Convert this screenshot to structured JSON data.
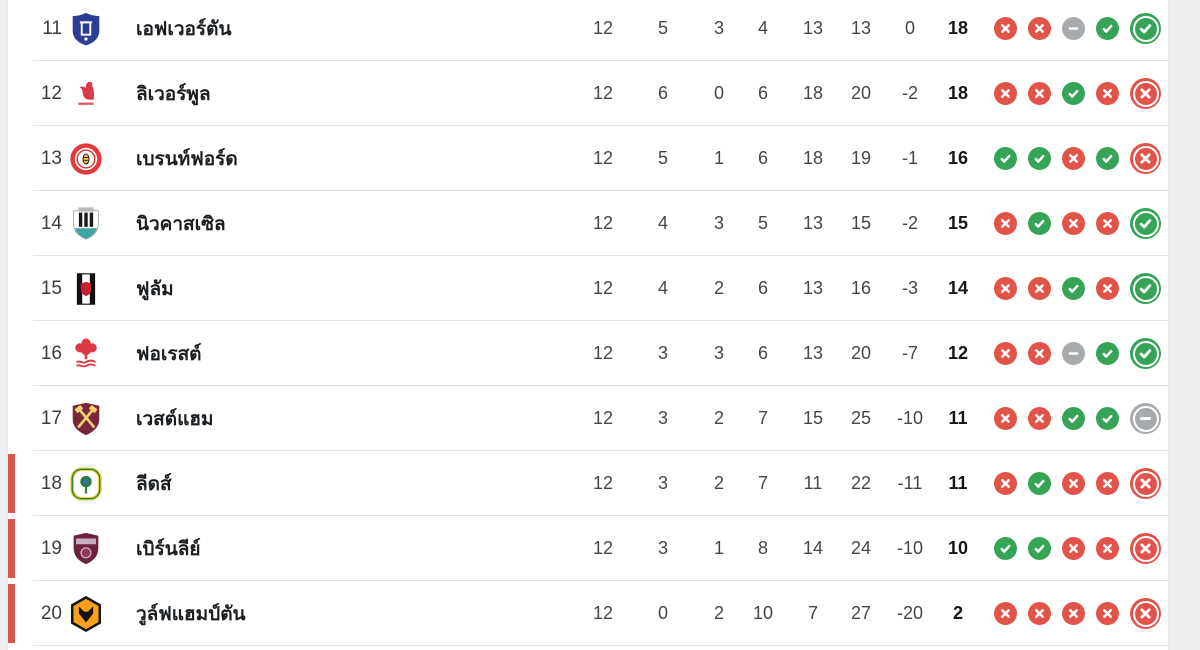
{
  "table": {
    "columns": [
      "pos",
      "team",
      "played",
      "won",
      "drawn",
      "lost",
      "goals_for",
      "goals_against",
      "goal_diff",
      "points",
      "form"
    ]
  },
  "colors": {
    "win": "#36a457",
    "loss": "#e2544a",
    "draw": "#a8abae",
    "relegation_bar": "#d9564c",
    "page_bg": "#eceef0",
    "card_bg": "#ffffff",
    "divider": "#e3e4e6"
  },
  "badges": {
    "everton": {
      "primary": "#2b3f92",
      "secondary": "#ffffff"
    },
    "liverpool": {
      "primary": "#d83a47",
      "secondary": "#ffffff"
    },
    "brentford": {
      "primary": "#e03a3e",
      "secondary": "#ffffff",
      "tertiary": "#f2c230"
    },
    "newcastle": {
      "primary": "#1b1b1b",
      "secondary": "#ffffff",
      "tertiary": "#3fa3a0"
    },
    "fulham": {
      "primary": "#111111",
      "secondary": "#ffffff",
      "tertiary": "#c9202f"
    },
    "forest": {
      "primary": "#dd3844",
      "secondary": "#ffffff"
    },
    "westham": {
      "primary": "#77263c",
      "secondary": "#f3d36b"
    },
    "leeds": {
      "primary": "#e8d53c",
      "secondary": "#2a7a45",
      "tertiary": "#3b6fb5"
    },
    "burnley": {
      "primary": "#6d2240",
      "secondary": "#c8aebf",
      "tertiary": "#8c3a5c"
    },
    "wolves": {
      "primary": "#f9a11b",
      "secondary": "#141414"
    }
  },
  "rows": [
    {
      "pos": "11",
      "key": "everton",
      "team": "เอฟเวอร์ตัน",
      "played": "12",
      "won": "5",
      "drawn": "3",
      "lost": "4",
      "gf": "13",
      "ga": "13",
      "gd": "0",
      "pts": "18",
      "relegation": false,
      "form": [
        "L",
        "L",
        "D",
        "W",
        "W"
      ]
    },
    {
      "pos": "12",
      "key": "liverpool",
      "team": "ลิเวอร์พูล",
      "played": "12",
      "won": "6",
      "drawn": "0",
      "lost": "6",
      "gf": "18",
      "ga": "20",
      "gd": "-2",
      "pts": "18",
      "relegation": false,
      "form": [
        "L",
        "L",
        "W",
        "L",
        "L"
      ]
    },
    {
      "pos": "13",
      "key": "brentford",
      "team": "เบรนท์ฟอร์ด",
      "played": "12",
      "won": "5",
      "drawn": "1",
      "lost": "6",
      "gf": "18",
      "ga": "19",
      "gd": "-1",
      "pts": "16",
      "relegation": false,
      "form": [
        "W",
        "W",
        "L",
        "W",
        "L"
      ]
    },
    {
      "pos": "14",
      "key": "newcastle",
      "team": "นิวคาสเซิล",
      "played": "12",
      "won": "4",
      "drawn": "3",
      "lost": "5",
      "gf": "13",
      "ga": "15",
      "gd": "-2",
      "pts": "15",
      "relegation": false,
      "form": [
        "L",
        "W",
        "L",
        "L",
        "W"
      ]
    },
    {
      "pos": "15",
      "key": "fulham",
      "team": "ฟูลัม",
      "played": "12",
      "won": "4",
      "drawn": "2",
      "lost": "6",
      "gf": "13",
      "ga": "16",
      "gd": "-3",
      "pts": "14",
      "relegation": false,
      "form": [
        "L",
        "L",
        "W",
        "L",
        "W"
      ]
    },
    {
      "pos": "16",
      "key": "forest",
      "team": "ฟอเรสต์",
      "played": "12",
      "won": "3",
      "drawn": "3",
      "lost": "6",
      "gf": "13",
      "ga": "20",
      "gd": "-7",
      "pts": "12",
      "relegation": false,
      "form": [
        "L",
        "L",
        "D",
        "W",
        "W"
      ]
    },
    {
      "pos": "17",
      "key": "westham",
      "team": "เวสต์แฮม",
      "played": "12",
      "won": "3",
      "drawn": "2",
      "lost": "7",
      "gf": "15",
      "ga": "25",
      "gd": "-10",
      "pts": "11",
      "relegation": false,
      "form": [
        "L",
        "L",
        "W",
        "W",
        "D"
      ]
    },
    {
      "pos": "18",
      "key": "leeds",
      "team": "ลีดส์",
      "played": "12",
      "won": "3",
      "drawn": "2",
      "lost": "7",
      "gf": "11",
      "ga": "22",
      "gd": "-11",
      "pts": "11",
      "relegation": true,
      "form": [
        "L",
        "W",
        "L",
        "L",
        "L"
      ]
    },
    {
      "pos": "19",
      "key": "burnley",
      "team": "เบิร์นลีย์",
      "played": "12",
      "won": "3",
      "drawn": "1",
      "lost": "8",
      "gf": "14",
      "ga": "24",
      "gd": "-10",
      "pts": "10",
      "relegation": true,
      "form": [
        "W",
        "W",
        "L",
        "L",
        "L"
      ]
    },
    {
      "pos": "20",
      "key": "wolves",
      "team": "วูล์ฟแฮมป์ตัน",
      "played": "12",
      "won": "0",
      "drawn": "2",
      "lost": "10",
      "gf": "7",
      "ga": "27",
      "gd": "-20",
      "pts": "2",
      "relegation": true,
      "form": [
        "L",
        "L",
        "L",
        "L",
        "L"
      ]
    }
  ]
}
